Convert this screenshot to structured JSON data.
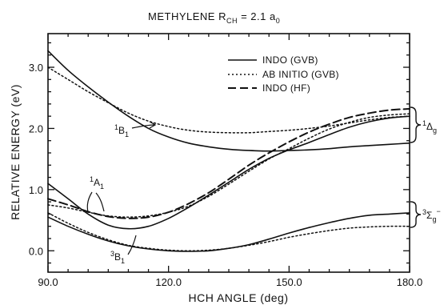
{
  "chart_data": {
    "type": "line",
    "title_main": "METHYLENE R",
    "title_sub": "CH",
    "title_tail": " = 2.1 a",
    "title_sub2": "0",
    "xlabel": "HCH ANGLE (deg)",
    "ylabel": "RELATIVE ENERGY (eV)",
    "xlim": [
      90,
      180
    ],
    "ylim": [
      -0.35,
      3.55
    ],
    "xticks": [
      90,
      120,
      150,
      180
    ],
    "xtick_labels": [
      "90.0",
      "120.0",
      "150.0",
      "180.0"
    ],
    "yticks": [
      0,
      1,
      2,
      3
    ],
    "ytick_labels": [
      "0.0",
      "1.0",
      "2.0",
      "3.0"
    ],
    "legend_position": "top-right",
    "legend": [
      {
        "label": "INDO (GVB)",
        "style": "solid"
      },
      {
        "label": "AB INITIO (GVB)",
        "style": "dotted"
      },
      {
        "label": "INDO (HF)",
        "style": "dashed"
      }
    ],
    "series": [
      {
        "state": "1B1",
        "method": "INDO (GVB)",
        "style": "solid",
        "points": [
          [
            90,
            3.27
          ],
          [
            95,
            2.95
          ],
          [
            100,
            2.68
          ],
          [
            105,
            2.43
          ],
          [
            110,
            2.2
          ],
          [
            115,
            2.0
          ],
          [
            120,
            1.86
          ],
          [
            125,
            1.76
          ],
          [
            130,
            1.7
          ],
          [
            135,
            1.66
          ],
          [
            140,
            1.64
          ],
          [
            145,
            1.63
          ],
          [
            150,
            1.64
          ],
          [
            155,
            1.65
          ],
          [
            160,
            1.67
          ],
          [
            165,
            1.7
          ],
          [
            170,
            1.72
          ],
          [
            175,
            1.74
          ],
          [
            180,
            1.76
          ]
        ]
      },
      {
        "state": "1B1",
        "method": "AB INITIO (GVB)",
        "style": "dotted",
        "points": [
          [
            90,
            3.0
          ],
          [
            95,
            2.8
          ],
          [
            100,
            2.6
          ],
          [
            105,
            2.42
          ],
          [
            110,
            2.25
          ],
          [
            115,
            2.12
          ],
          [
            120,
            2.03
          ],
          [
            125,
            1.97
          ],
          [
            130,
            1.94
          ],
          [
            135,
            1.93
          ],
          [
            140,
            1.93
          ],
          [
            145,
            1.95
          ],
          [
            150,
            1.97
          ],
          [
            155,
            2.0
          ],
          [
            160,
            2.04
          ],
          [
            165,
            2.09
          ],
          [
            170,
            2.14
          ],
          [
            175,
            2.18
          ],
          [
            180,
            2.2
          ]
        ]
      },
      {
        "state": "1A1",
        "method": "INDO (GVB)",
        "style": "solid",
        "points": [
          [
            90,
            1.1
          ],
          [
            95,
            0.85
          ],
          [
            100,
            0.6
          ],
          [
            105,
            0.42
          ],
          [
            110,
            0.36
          ],
          [
            115,
            0.4
          ],
          [
            120,
            0.53
          ],
          [
            125,
            0.71
          ],
          [
            130,
            0.91
          ],
          [
            135,
            1.12
          ],
          [
            140,
            1.33
          ],
          [
            145,
            1.51
          ],
          [
            150,
            1.65
          ],
          [
            155,
            1.77
          ],
          [
            160,
            1.9
          ],
          [
            165,
            2.02
          ],
          [
            170,
            2.11
          ],
          [
            175,
            2.17
          ],
          [
            180,
            2.2
          ]
        ]
      },
      {
        "state": "1A1",
        "method": "AB INITIO (GVB)",
        "style": "dotted",
        "points": [
          [
            90,
            0.75
          ],
          [
            95,
            0.7
          ],
          [
            100,
            0.63
          ],
          [
            105,
            0.57
          ],
          [
            110,
            0.55
          ],
          [
            115,
            0.57
          ],
          [
            120,
            0.63
          ],
          [
            125,
            0.73
          ],
          [
            130,
            0.89
          ],
          [
            135,
            1.09
          ],
          [
            140,
            1.3
          ],
          [
            145,
            1.5
          ],
          [
            150,
            1.67
          ],
          [
            155,
            1.84
          ],
          [
            160,
            1.99
          ],
          [
            165,
            2.1
          ],
          [
            170,
            2.18
          ],
          [
            175,
            2.22
          ],
          [
            180,
            2.24
          ]
        ]
      },
      {
        "state": "1A1",
        "method": "INDO (HF)",
        "style": "dashed",
        "points": [
          [
            90,
            0.85
          ],
          [
            95,
            0.75
          ],
          [
            100,
            0.64
          ],
          [
            105,
            0.56
          ],
          [
            110,
            0.53
          ],
          [
            115,
            0.55
          ],
          [
            120,
            0.63
          ],
          [
            125,
            0.77
          ],
          [
            130,
            0.95
          ],
          [
            135,
            1.17
          ],
          [
            140,
            1.4
          ],
          [
            145,
            1.6
          ],
          [
            150,
            1.78
          ],
          [
            155,
            1.94
          ],
          [
            160,
            2.07
          ],
          [
            165,
            2.18
          ],
          [
            170,
            2.25
          ],
          [
            175,
            2.3
          ],
          [
            180,
            2.32
          ]
        ]
      },
      {
        "state": "3B1",
        "method": "INDO (GVB)",
        "style": "solid",
        "points": [
          [
            90,
            0.55
          ],
          [
            95,
            0.4
          ],
          [
            100,
            0.27
          ],
          [
            105,
            0.16
          ],
          [
            110,
            0.08
          ],
          [
            115,
            0.03
          ],
          [
            120,
            0.0
          ],
          [
            125,
            -0.01
          ],
          [
            130,
            0.0
          ],
          [
            135,
            0.04
          ],
          [
            140,
            0.1
          ],
          [
            145,
            0.19
          ],
          [
            150,
            0.29
          ],
          [
            155,
            0.38
          ],
          [
            160,
            0.46
          ],
          [
            165,
            0.53
          ],
          [
            170,
            0.58
          ],
          [
            175,
            0.6
          ],
          [
            180,
            0.62
          ]
        ]
      },
      {
        "state": "3B1",
        "method": "AB INITIO (GVB)",
        "style": "dotted",
        "points": [
          [
            90,
            0.62
          ],
          [
            95,
            0.45
          ],
          [
            100,
            0.3
          ],
          [
            105,
            0.18
          ],
          [
            110,
            0.09
          ],
          [
            115,
            0.04
          ],
          [
            120,
            0.01
          ],
          [
            125,
            0.0
          ],
          [
            130,
            0.01
          ],
          [
            135,
            0.04
          ],
          [
            140,
            0.09
          ],
          [
            145,
            0.15
          ],
          [
            150,
            0.22
          ],
          [
            155,
            0.28
          ],
          [
            160,
            0.33
          ],
          [
            165,
            0.37
          ],
          [
            170,
            0.39
          ],
          [
            175,
            0.4
          ],
          [
            180,
            0.4
          ]
        ]
      }
    ],
    "annotations": {
      "b1_singlet": {
        "main": "B",
        "sup": "1",
        "sub": "1"
      },
      "a1_singlet": {
        "main": "A",
        "sup": "1",
        "sub": "1"
      },
      "b1_triplet": {
        "main": "B",
        "sup": "3",
        "sub": "1"
      },
      "delta_g": {
        "main": "Δ",
        "sup": "1",
        "sub": "g"
      },
      "sigma_g": {
        "main": "Σ",
        "sup": "3",
        "sub": "g",
        "supsub": "−"
      }
    },
    "grid": false
  }
}
